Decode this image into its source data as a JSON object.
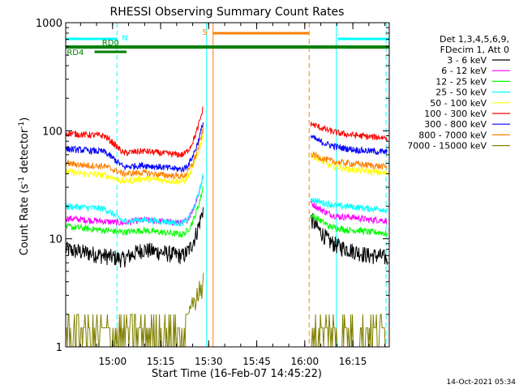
{
  "chart_data": {
    "type": "line",
    "title": "RHESSI Observing Summary Count Rates",
    "xlabel": "Start Time (16-Feb-07 14:45:22)",
    "ylabel_main": "Count Rate (s",
    "ylabel_sup1": "-1",
    "ylabel_mid": " detector",
    "ylabel_sup2": "-1",
    "ylabel_end": ")",
    "y_scale": "log",
    "ylim": [
      1,
      1000
    ],
    "xlim_minutes": [
      0,
      101
    ],
    "x_ticks": [
      {
        "minute": 14.633,
        "label": "15:00"
      },
      {
        "minute": 29.633,
        "label": "15:15"
      },
      {
        "minute": 44.633,
        "label": "15:30"
      },
      {
        "minute": 59.633,
        "label": "15:45"
      },
      {
        "minute": 74.633,
        "label": "16:00"
      },
      {
        "minute": 89.633,
        "label": "16:15"
      }
    ],
    "y_ticks": [
      {
        "value": 1,
        "label": "1"
      },
      {
        "value": 10,
        "label": "10"
      },
      {
        "value": 100,
        "label": "100"
      },
      {
        "value": 1000,
        "label": "1000"
      }
    ],
    "legend_header": [
      "Det 1,3,4,5,6,9,",
      "FDecim 1, Att 0"
    ],
    "legend_position": "right",
    "series": [
      {
        "name": "3 - 6 keV",
        "color": "#000000",
        "pre": [
          8,
          7.5,
          7,
          6.5,
          8,
          7.5,
          7
        ],
        "post": [
          16,
          12,
          9.5,
          8.5,
          8,
          7.5,
          7,
          7,
          6.5
        ]
      },
      {
        "name": "6 - 12 keV",
        "color": "#ff00ff",
        "pre": [
          15.5,
          15,
          14.5,
          14,
          15,
          14.5,
          14
        ],
        "post": [
          22,
          19,
          17,
          16,
          16,
          15.5,
          15,
          15,
          14.5
        ]
      },
      {
        "name": "12 - 25 keV",
        "color": "#00ff00",
        "pre": [
          13,
          12.5,
          12,
          11.5,
          12,
          11.5,
          11
        ],
        "post": [
          17,
          15,
          13,
          12.5,
          12,
          12,
          11.5,
          11.5,
          11
        ]
      },
      {
        "name": "25 - 50 keV",
        "color": "#00ffff",
        "pre": [
          20,
          19.5,
          19,
          14.5,
          15,
          14.5,
          14
        ],
        "post": [
          24,
          22,
          21,
          20,
          20,
          19.5,
          19,
          19,
          18.5
        ]
      },
      {
        "name": "50 - 100 keV",
        "color": "#ffff00",
        "pre": [
          42,
          40,
          39,
          34,
          36,
          35,
          34
        ],
        "post": [
          60,
          54,
          48,
          46,
          44,
          43,
          42,
          41,
          40
        ]
      },
      {
        "name": "100 - 300 keV",
        "color": "#ff0000",
        "pre": [
          95,
          92,
          90,
          62,
          65,
          62,
          60
        ],
        "post": [
          118,
          108,
          100,
          95,
          92,
          90,
          88,
          87,
          86
        ]
      },
      {
        "name": "300 - 800 keV",
        "color": "#0000ff",
        "pre": [
          68,
          66,
          64,
          46,
          48,
          46,
          44
        ],
        "post": [
          90,
          80,
          74,
          70,
          68,
          66,
          65,
          64,
          63
        ]
      },
      {
        "name": "800 - 7000 keV",
        "color": "#ff8000",
        "pre": [
          50,
          48,
          47,
          40,
          41,
          39,
          38
        ],
        "post": [
          62,
          57,
          53,
          51,
          50,
          49,
          48,
          47,
          46
        ]
      },
      {
        "name": "7000 - 15000 keV",
        "color": "#808000",
        "pre": [
          1.5,
          1.5,
          1.5,
          1.5,
          1.5,
          1.5,
          1.5
        ],
        "post": [
          1.5,
          1.5,
          1.5,
          1.5,
          1.5,
          1.5,
          1.5,
          1.5,
          1.5
        ]
      }
    ],
    "pre_gap_end_minute": 43,
    "post_gap_start_minute": 76,
    "flag_bars": [
      {
        "label": "N",
        "color": "#00ffff",
        "segments": [
          [
            0,
            16
          ],
          [
            85,
            101
          ]
        ]
      },
      {
        "label": "S",
        "color": "#ff8000",
        "segments": [
          [
            46,
            76
          ]
        ]
      },
      {
        "label": "RD0",
        "color": "#008000",
        "segments": [
          [
            0,
            101
          ]
        ]
      },
      {
        "label": "RD4",
        "color": "#008000",
        "segments": [
          [
            9,
            19
          ]
        ]
      }
    ],
    "vertical_markers": [
      {
        "minute": 0,
        "color": "#00ffff",
        "style": "solid"
      },
      {
        "minute": 16,
        "color": "#00ffff",
        "style": "dashed"
      },
      {
        "minute": 44,
        "color": "#00ffff",
        "style": "solid"
      },
      {
        "minute": 46,
        "color": "#ff8000",
        "style": "solid"
      },
      {
        "minute": 76,
        "color": "#ff8000",
        "style": "dashed"
      },
      {
        "minute": 84.5,
        "color": "#00ffff",
        "style": "solid"
      },
      {
        "minute": 100,
        "color": "#00ffff",
        "style": "dashed"
      }
    ],
    "timestamp": "14-Oct-2021 05:34"
  }
}
